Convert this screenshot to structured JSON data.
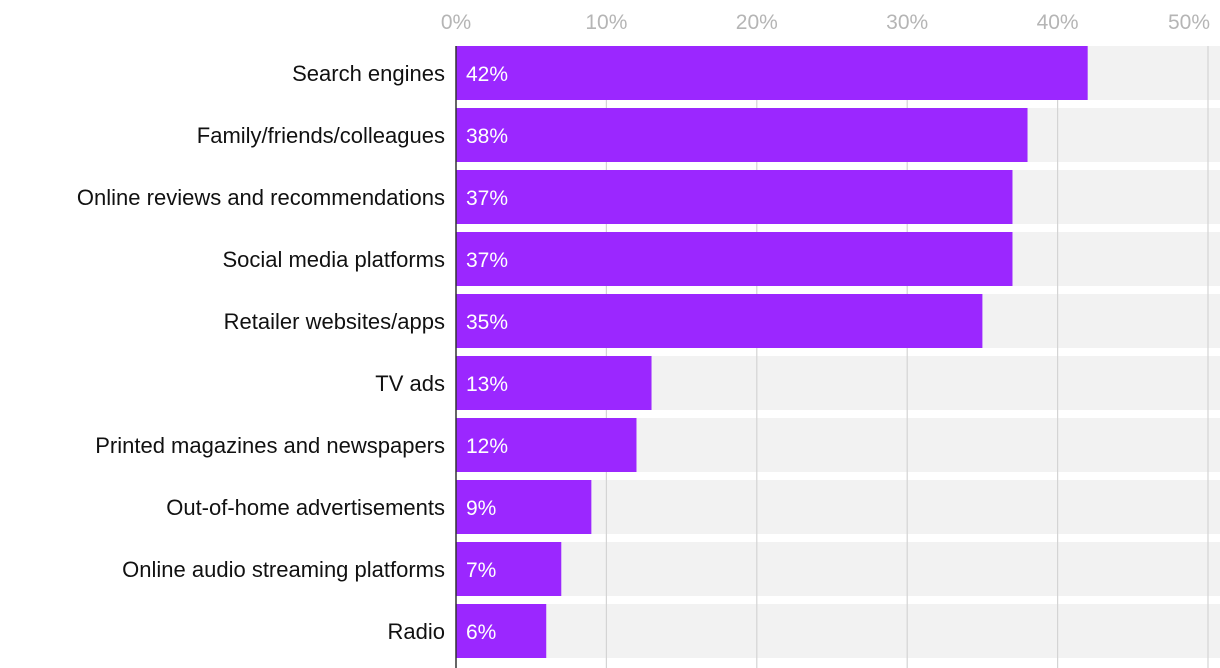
{
  "chart_data": {
    "type": "bar",
    "orientation": "horizontal",
    "title": "",
    "xlabel": "",
    "ylabel": "",
    "xlim": [
      0,
      50
    ],
    "ticks": [
      0,
      10,
      20,
      30,
      40,
      50
    ],
    "tick_labels": [
      "0%",
      "10%",
      "20%",
      "30%",
      "40%",
      "50%"
    ],
    "categories": [
      "Search engines",
      "Family/friends/colleagues",
      "Online reviews and recommendations",
      "Social media platforms",
      "Retailer websites/apps",
      "TV ads",
      "Printed magazines and newspapers",
      "Out-of-home advertisements",
      "Online audio streaming platforms",
      "Radio"
    ],
    "values": [
      42,
      38,
      37,
      37,
      35,
      13,
      12,
      9,
      7,
      6
    ],
    "value_labels": [
      "42%",
      "38%",
      "37%",
      "37%",
      "35%",
      "13%",
      "12%",
      "9%",
      "7%",
      "6%"
    ],
    "colors": {
      "bar": "#9b27ff",
      "row_background": "#f2f2f2",
      "gridline": "#d4d4d4",
      "axis": "#333333",
      "tick_text": "#b5b5b5",
      "label_text": "#111111",
      "value_text": "#ffffff"
    }
  }
}
